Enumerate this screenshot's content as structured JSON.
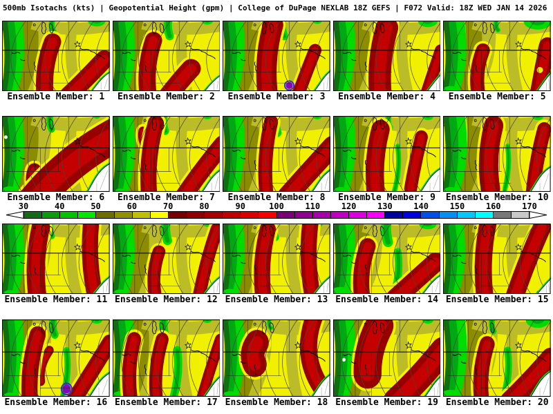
{
  "title": "500mb Isotachs (kts) | Geopotential Height (gpm) | College of DuPage NEXLAB   18Z GEFS | F072 Valid: 18Z WED JAN 14 2026",
  "colorbar": {
    "unit_labels": [
      "30",
      "40",
      "50",
      "60",
      "70",
      "80",
      "90",
      "100",
      "110",
      "120",
      "130",
      "140",
      "150",
      "160",
      "170"
    ],
    "segment_colors": [
      "#166B16",
      "#0E9A0E",
      "#00C400",
      "#00E800",
      "#6E6E00",
      "#909000",
      "#C0C000",
      "#FCFC00",
      "#780000",
      "#900000",
      "#A80000",
      "#C00000",
      "#DC0000",
      "#F80000",
      "#780078",
      "#900090",
      "#A800A8",
      "#C000C0",
      "#DC00DC",
      "#F800F8",
      "#0000A0",
      "#0000E0",
      "#0050E8",
      "#0090F0",
      "#00C8F8",
      "#00FFFF",
      "#787878",
      "#C8C8C8"
    ],
    "arrow_fill": "#FFFFFF"
  },
  "map_style": {
    "bg": "#F0F000",
    "khaki_light": "#BCBC28",
    "khaki": "#8C8C00",
    "green_bright": "#00DC00",
    "green_mid": "#00A814",
    "green_dark": "#107010",
    "red": "#980000",
    "red_core": "#C40000",
    "halo": "#F4F400",
    "purple": "#8C00C8",
    "purple_ring": "#3232D2",
    "contour": "#46463C",
    "geo": "#000000",
    "gulf_line": "#A8A8A8",
    "water": "#FFFFFF"
  },
  "panels": [
    {
      "label": "Ensemble Member: 1",
      "map": {
        "g": 1,
        "gt": 0.7,
        "gtx": 0.47,
        "gtr": 0.8,
        "gc": 0,
        "gbl": 0,
        "s1": [
          0.47,
          0.3,
          0.4,
          1.06,
          0.16
        ],
        "rb": [
          0.95,
          0.55,
          0.62,
          1.06,
          0.17,
          0.76,
          0.86
        ],
        "gx0": 0.82,
        "gy1": 0.72
      }
    },
    {
      "label": "Ensemble Member: 2",
      "map": {
        "g": 1,
        "gt": 1,
        "gtx": 0.52,
        "gtr": 0.5,
        "gc": 0,
        "gbl": 0,
        "s1": [
          0.38,
          0.28,
          0.33,
          1.06,
          0.16
        ],
        "rb": [
          0.73,
          0.68,
          0.52,
          1.06,
          0.18,
          0.62,
          0.86
        ],
        "gx0": 0.84,
        "gy1": 0.76
      }
    },
    {
      "label": "Ensemble Member: 3",
      "map": {
        "g": 1,
        "gt": 1,
        "gtx": 0.56,
        "gtr": 0.4,
        "gc": 0,
        "gbl": 0,
        "s1": [
          0.47,
          0.06,
          0.42,
          1.06,
          0.19,
          0.38,
          0.55
        ],
        "rb": [
          0.86,
          0.42,
          0.7,
          1.06,
          0.12,
          0.78,
          0.72
        ],
        "pu": [
          0.62,
          0.92,
          5
        ],
        "gx0": 0.84,
        "gy1": 0.7
      }
    },
    {
      "label": "Ensemble Member: 4",
      "map": {
        "g": 1,
        "gt": 0.9,
        "gtx": 0.5,
        "gtr": 0.9,
        "gc": 0,
        "gbl": 0,
        "s1": [
          0.5,
          0.1,
          0.44,
          1.06,
          0.21
        ],
        "rb": [
          1.0,
          0.42,
          0.86,
          1.06,
          0.11,
          0.93,
          0.73
        ],
        "gx0": 0.86,
        "gy1": 0.74
      }
    },
    {
      "label": "Ensemble Member: 5",
      "map": {
        "g": 1.1,
        "gt": 0.6,
        "gtx": 0.5,
        "gtr": 1.3,
        "gc": 0,
        "gbl": 0.8,
        "s1": [
          0.37,
          0.42,
          0.33,
          1.06,
          0.13
        ],
        "rb": [
          0.97,
          0.35,
          0.88,
          1.06,
          0.15,
          0.92,
          0.7
        ],
        "hole": [
          0.9,
          0.7
        ],
        "gx0": 0.86,
        "gy1": 0.72
      }
    },
    {
      "label": "Ensemble Member: 6",
      "map": {
        "g": 1,
        "gt": 0.8,
        "gtx": 0.45,
        "gtr": 0.3,
        "gc": 0,
        "gbl": 0.8,
        "s1": [
          0.3,
          0.72,
          0.34,
          1.06,
          0.13
        ],
        "rb": [
          1.05,
          0.25,
          0.3,
          1.12,
          0.3,
          0.6,
          0.6
        ],
        "ws": [
          0.035,
          0.28
        ],
        "gx0": 0.78,
        "gy1": 0.62
      }
    },
    {
      "label": "Ensemble Member: 7",
      "map": {
        "g": 1,
        "gt": 0.9,
        "gtx": 0.48,
        "gtr": 0.4,
        "gc": 0,
        "gbl": 0.5,
        "s1": [
          0.4,
          0.1,
          0.34,
          1.06,
          0.15
        ],
        "s2": [
          0.28,
          0.2,
          0.36,
          0.52,
          0.08
        ],
        "rb": [
          1.02,
          0.38,
          0.66,
          1.06,
          0.16,
          0.82,
          0.72
        ],
        "gx0": 0.82,
        "gy1": 0.7
      }
    },
    {
      "label": "Ensemble Member: 8",
      "map": {
        "g": 1,
        "gt": 1,
        "gtx": 0.5,
        "gtr": 0.4,
        "gc": 0,
        "gbl": 0,
        "s1": [
          0.45,
          0.08,
          0.41,
          1.06,
          0.13
        ],
        "rb": [
          1.02,
          0.4,
          0.6,
          1.06,
          0.18,
          0.8,
          0.74
        ],
        "gx0": 0.82,
        "gy1": 0.7
      }
    },
    {
      "label": "Ensemble Member: 9",
      "map": {
        "g": 1,
        "gt": 0.7,
        "gtx": 0.52,
        "gtr": 0.5,
        "gc": 0.8,
        "gbl": 0.7,
        "s1": [
          0.44,
          0.18,
          0.4,
          1.06,
          0.17
        ],
        "rb": [
          0.82,
          0.28,
          0.72,
          0.96,
          0.12,
          0.76,
          0.62
        ],
        "gx0": 0.8,
        "gy1": 0.68
      }
    },
    {
      "label": "Ensemble Member: 10",
      "map": {
        "g": 1.15,
        "gt": 0.6,
        "gtx": 0.52,
        "gtr": 0.5,
        "gc": 0.8,
        "gbl": 0.7,
        "s1": [
          0.47,
          0.13,
          0.44,
          0.96,
          0.18
        ],
        "rb": [
          0.94,
          0.18,
          0.83,
          1.06,
          0.13,
          0.86,
          0.6
        ],
        "gx0": 0.8,
        "gy1": 0.66
      }
    },
    {
      "label": "Ensemble Member: 11",
      "map": {
        "g": 1,
        "gt": 0.8,
        "gtx": 0.45,
        "gtr": 0.3,
        "gc": 0,
        "gbl": 0.6,
        "s1": [
          0.36,
          0.05,
          0.33,
          1.06,
          0.17
        ],
        "rb": [
          0.83,
          -0.05,
          0.87,
          1.06,
          0.15
        ],
        "gx0": 0.84,
        "gy1": 0.74
      }
    },
    {
      "label": "Ensemble Member: 12",
      "map": {
        "g": 1,
        "gt": 1.1,
        "gtx": 0.5,
        "gtr": 0.4,
        "gc": 0,
        "gbl": 0.7,
        "s1": [
          0.43,
          0.4,
          0.4,
          1.06,
          0.12
        ],
        "rb": [
          0.97,
          0.08,
          0.8,
          1.06,
          0.12,
          0.86,
          0.56
        ],
        "gx0": 0.84,
        "gy1": 0.74
      }
    },
    {
      "label": "Ensemble Member: 13",
      "map": {
        "g": 1,
        "gt": 0.9,
        "gtx": 0.48,
        "gtr": 0.5,
        "gc": 0,
        "gbl": 0.8,
        "s1": [
          0.42,
          0.08,
          0.38,
          1.06,
          0.15
        ],
        "rb": [
          0.82,
          -0.05,
          0.84,
          1.06,
          0.15
        ],
        "gx0": 0.84,
        "gy1": 0.74
      }
    },
    {
      "label": "Ensemble Member: 14",
      "map": {
        "g": 1,
        "gt": 1.2,
        "gtx": 0.5,
        "gtr": 0.8,
        "gc": 1.2,
        "gbl": 1.1,
        "s1": [
          0.32,
          0.32,
          0.27,
          1.06,
          0.15
        ],
        "rb": [
          0.95,
          0.55,
          0.58,
          1.06,
          0.18,
          0.74,
          0.84
        ],
        "gx0": 0.82,
        "gy1": 0.72
      }
    },
    {
      "label": "Ensemble Member: 15",
      "map": {
        "g": 1,
        "gt": 0.8,
        "gtx": 0.46,
        "gtr": 0.6,
        "gc": 0,
        "gbl": 0,
        "s1": [
          0.42,
          -0.02,
          0.39,
          1.06,
          0.16
        ],
        "rb": [
          0.92,
          0.05,
          0.66,
          1.06,
          0.17,
          0.76,
          0.6
        ],
        "pu": [
          0.9,
          1.0,
          3
        ],
        "gx0": 0.86,
        "gy1": 0.76
      }
    },
    {
      "label": "Ensemble Member: 16",
      "map": {
        "g": 1,
        "gt": 0.9,
        "gtx": 0.48,
        "gtr": 0.5,
        "gc": 1,
        "gbl": 0.6,
        "s1": [
          0.33,
          0.2,
          0.26,
          1.06,
          0.15
        ],
        "s2": [
          0.44,
          0.4,
          0.36,
          0.8,
          0.08
        ],
        "rb": [
          1.0,
          0.3,
          0.66,
          1.06,
          0.14,
          0.82,
          0.7
        ],
        "pu": [
          0.6,
          0.9,
          6
        ],
        "gx0": 0.8,
        "gy1": 0.68
      }
    },
    {
      "label": "Ensemble Member: 17",
      "map": {
        "g": 1,
        "gt": 1,
        "gtx": 0.48,
        "gtr": 0.4,
        "gc": 1.3,
        "gbl": 0.8,
        "s1": [
          0.2,
          0.26,
          0.17,
          1.06,
          0.13
        ],
        "s2": [
          0.46,
          0.26,
          0.41,
          1.06,
          0.12
        ],
        "rb": [
          1.0,
          0.26,
          0.82,
          1.06,
          0.1,
          0.9,
          0.66
        ],
        "gx0": 0.84,
        "gy1": 0.72
      }
    },
    {
      "label": "Ensemble Member: 18",
      "map": {
        "g": 1,
        "gt": 0.5,
        "gtx": 0.44,
        "gtr": 0.6,
        "gc": 0,
        "gbl": 0.8,
        "s1": [
          0.32,
          0.3,
          0.3,
          0.58,
          0.22
        ],
        "rb": [
          0.86,
          -0.06,
          0.96,
          0.96,
          0.16,
          0.7,
          0.5
        ],
        "gx0": 0.82,
        "gy1": 0.7
      }
    },
    {
      "label": "Ensemble Member: 19",
      "map": {
        "g": 1,
        "gt": 0.4,
        "gtx": 0.42,
        "gtr": 0.5,
        "gc": 0,
        "gbl": 0,
        "s1": [
          0.43,
          0.08,
          0.32,
          0.7,
          0.26
        ],
        "rb": [
          1.02,
          0.4,
          0.58,
          1.06,
          0.23,
          0.8,
          0.78
        ],
        "ws": [
          0.1,
          0.52
        ],
        "gx0": 0.84,
        "gy1": 0.72
      }
    },
    {
      "label": "Ensemble Member: 20",
      "map": {
        "g": 1.15,
        "gt": 0.7,
        "gtx": 0.46,
        "gtr": 1.1,
        "gc": 1.1,
        "gbl": 1,
        "s1": [
          0.41,
          0.32,
          0.36,
          1.06,
          0.14
        ],
        "rb": [
          1.0,
          0.5,
          0.62,
          1.06,
          0.18,
          0.8,
          0.82
        ],
        "gx0": 0.8,
        "gy1": 0.66
      }
    }
  ]
}
